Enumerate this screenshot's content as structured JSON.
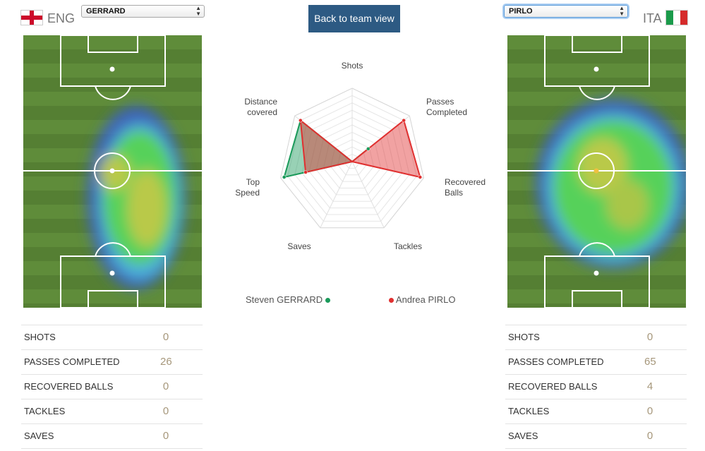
{
  "left": {
    "team_code": "ENG",
    "player_select": "GERRARD",
    "stats": [
      {
        "label": "SHOTS",
        "value": "0"
      },
      {
        "label": "PASSES COMPLETED",
        "value": "26"
      },
      {
        "label": "RECOVERED BALLS",
        "value": "0"
      },
      {
        "label": "TACKLES",
        "value": "0"
      },
      {
        "label": "SAVES",
        "value": "0"
      }
    ]
  },
  "right": {
    "team_code": "ITA",
    "player_select": "PIRLO",
    "stats": [
      {
        "label": "SHOTS",
        "value": "0"
      },
      {
        "label": "PASSES COMPLETED",
        "value": "65"
      },
      {
        "label": "RECOVERED BALLS",
        "value": "4"
      },
      {
        "label": "TACKLES",
        "value": "0"
      },
      {
        "label": "SAVES",
        "value": "0"
      }
    ]
  },
  "back_button": "Back to team view",
  "chart_data": {
    "type": "radar",
    "axes": [
      "Shots",
      "Passes Completed",
      "Recovered Balls",
      "Tackles",
      "Saves",
      "Top Speed",
      "Distance covered"
    ],
    "range": [
      0,
      1
    ],
    "grid": true,
    "series": [
      {
        "name": "Steven GERRARD",
        "color": "#1a9a5a",
        "values": [
          0,
          0.28,
          0,
          0,
          0,
          0.95,
          0.9
        ]
      },
      {
        "name": "Andrea PIRLO",
        "color": "#e03030",
        "values": [
          0,
          0.9,
          0.95,
          0,
          0,
          0.65,
          0.9
        ]
      }
    ]
  },
  "icons": {
    "left_flag": "england-flag-icon",
    "right_flag": "italy-flag-icon",
    "select_arrow": "select-arrows-icon"
  },
  "colors": {
    "gerrard": "#1a9a5a",
    "pirlo": "#e03030",
    "button": "#2d5a83",
    "stat_value": "#a6977b"
  }
}
